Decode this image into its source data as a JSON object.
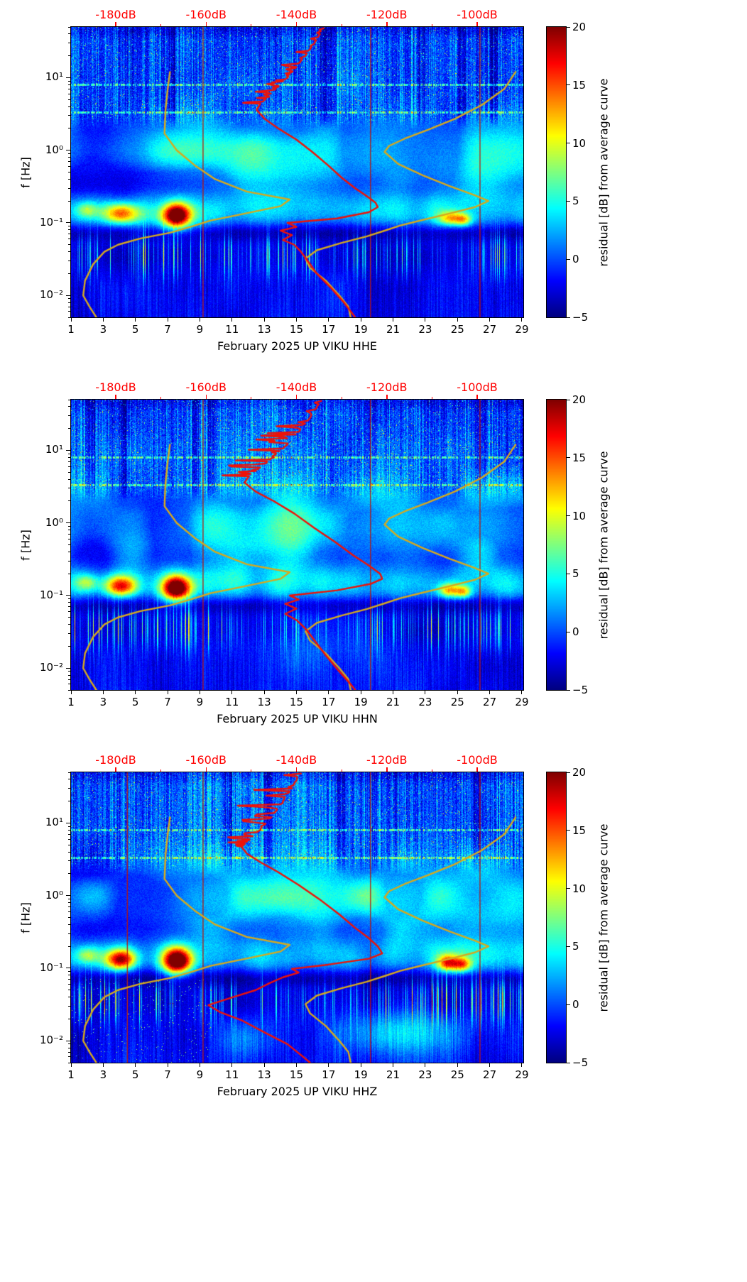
{
  "chart_data": {
    "type": "heatmap",
    "shared": {
      "ylabel": "f [Hz]",
      "freq_range_hz": [
        0.005,
        50
      ],
      "day_range": [
        1,
        29
      ],
      "day_ticks": [
        1,
        3,
        5,
        7,
        9,
        11,
        13,
        15,
        17,
        19,
        21,
        23,
        25,
        27,
        29
      ],
      "y_tick_labels": [
        "10⁻²",
        "10⁻¹",
        "10⁰",
        "10¹"
      ],
      "y_tick_exponents": [
        -2,
        -1,
        0,
        1
      ],
      "top_axis": {
        "labels": [
          "-180dB",
          "-160dB",
          "-140dB",
          "-120dB",
          "-100dB"
        ],
        "values_db": [
          -180,
          -160,
          -140,
          -120,
          -100
        ],
        "color": "#ff0000"
      },
      "colorbar": {
        "label": "residual [dB] from average curve",
        "tick_labels": [
          "20",
          "15",
          "10",
          "5",
          "0",
          "−5"
        ],
        "tick_values": [
          20,
          15,
          10,
          5,
          0,
          -5
        ],
        "min": -5,
        "max": 20,
        "colormap": "jet"
      },
      "colors": {
        "red_curve": "#ee1208",
        "model_curve": "#d6a91e",
        "event_line": "#bb1407"
      },
      "model_curves": {
        "low_noise_model_db_hz": [
          [
            -168,
            12
          ],
          [
            -168.5,
            7
          ],
          [
            -169,
            3.5
          ],
          [
            -169.2,
            1.7
          ],
          [
            -166.5,
            1.0
          ],
          [
            -162.5,
            0.62
          ],
          [
            -158,
            0.4
          ],
          [
            -151,
            0.27
          ],
          [
            -141.5,
            0.21
          ],
          [
            -143.5,
            0.17
          ],
          [
            -152,
            0.132
          ],
          [
            -159,
            0.108
          ],
          [
            -163,
            0.09
          ],
          [
            -168,
            0.073
          ],
          [
            -174.5,
            0.061
          ],
          [
            -179.5,
            0.05
          ],
          [
            -182.5,
            0.04
          ],
          [
            -185,
            0.027
          ],
          [
            -186.8,
            0.016
          ],
          [
            -187.2,
            0.01
          ],
          [
            -185.8,
            0.007
          ],
          [
            -184.3,
            0.005
          ]
        ],
        "high_noise_model_db_hz": [
          [
            -91.5,
            12
          ],
          [
            -94,
            7
          ],
          [
            -99,
            4.2
          ],
          [
            -105,
            2.7
          ],
          [
            -111,
            1.9
          ],
          [
            -116,
            1.45
          ],
          [
            -119.5,
            1.15
          ],
          [
            -120.5,
            0.95
          ],
          [
            -117.5,
            0.65
          ],
          [
            -112,
            0.45
          ],
          [
            -106,
            0.32
          ],
          [
            -100.5,
            0.24
          ],
          [
            -97.5,
            0.2
          ],
          [
            -100.5,
            0.165
          ],
          [
            -106,
            0.135
          ],
          [
            -112,
            0.11
          ],
          [
            -117,
            0.092
          ],
          [
            -120.5,
            0.078
          ],
          [
            -124.5,
            0.065
          ],
          [
            -130,
            0.053
          ],
          [
            -135.5,
            0.042
          ],
          [
            -138,
            0.032
          ],
          [
            -137,
            0.024
          ],
          [
            -133.5,
            0.016
          ],
          [
            -130.5,
            0.01
          ],
          [
            -128.5,
            0.007
          ],
          [
            -128,
            0.005
          ]
        ]
      }
    },
    "panels": [
      {
        "channel": "HHE",
        "xlabel": "February 2025 UP VIKU  HHE",
        "seed": 1,
        "event_line_days": [
          9.2,
          19.6,
          26.4
        ],
        "red_curve_db_hz": [
          [
            -134,
            48
          ],
          [
            -136,
            30
          ],
          [
            -138,
            20
          ],
          [
            -140,
            14
          ],
          [
            -142,
            10
          ],
          [
            -144,
            7.5
          ],
          [
            -146,
            5.5
          ],
          [
            -148,
            4.4
          ],
          [
            -148.8,
            3.6
          ],
          [
            -147,
            2.7
          ],
          [
            -144,
            2.0
          ],
          [
            -140,
            1.4
          ],
          [
            -136.5,
            0.95
          ],
          [
            -133,
            0.62
          ],
          [
            -130,
            0.42
          ],
          [
            -127,
            0.3
          ],
          [
            -124.5,
            0.235
          ],
          [
            -122.5,
            0.19
          ],
          [
            -122,
            0.165
          ],
          [
            -124,
            0.14
          ],
          [
            -131,
            0.115
          ],
          [
            -142,
            0.1
          ],
          [
            -140,
            0.088
          ],
          [
            -143.5,
            0.078
          ],
          [
            -141,
            0.068
          ],
          [
            -143,
            0.058
          ],
          [
            -140.5,
            0.05
          ],
          [
            -139,
            0.04
          ],
          [
            -137.5,
            0.03
          ],
          [
            -135.5,
            0.02
          ],
          [
            -132.5,
            0.013
          ],
          [
            -129.5,
            0.008
          ],
          [
            -127,
            0.005
          ]
        ],
        "jag": {
          "above_hz": 4,
          "amp_db": 6,
          "center_logf": 0.9,
          "width_logf": 0.38
        },
        "blobs": [
          {
            "d": 4.1,
            "l": -0.87,
            "sd": 0.75,
            "sl": 0.1,
            "a": 13
          },
          {
            "d": 7.55,
            "l": -0.9,
            "sd": 0.6,
            "sl": 0.12,
            "a": 21
          },
          {
            "d": 2.0,
            "l": -0.82,
            "sd": 0.5,
            "sl": 0.08,
            "a": 6
          },
          {
            "d": 24.6,
            "l": -0.94,
            "sd": 0.55,
            "sl": 0.07,
            "a": 10
          },
          {
            "d": 25.4,
            "l": -0.96,
            "sd": 0.35,
            "sl": 0.06,
            "a": 8
          }
        ],
        "wedges": [
          {
            "d": 9.5,
            "a": 3.2
          },
          {
            "d": 14.5,
            "a": 3.6
          },
          {
            "d": 21,
            "a": 3.4
          },
          {
            "d": 26.5,
            "a": 2.5
          }
        ],
        "low_features": [],
        "bottom_speckle": false,
        "hf_boost": null
      },
      {
        "channel": "HHN",
        "xlabel": "February 2025 UP VIKU  HHN",
        "seed": 2,
        "event_line_days": [
          9.2,
          19.6,
          26.4
        ],
        "red_curve_db_hz": [
          [
            -134.5,
            48
          ],
          [
            -137,
            28
          ],
          [
            -139.5,
            18
          ],
          [
            -142,
            12
          ],
          [
            -145,
            8
          ],
          [
            -148,
            5.8
          ],
          [
            -150.5,
            4.4
          ],
          [
            -151.5,
            3.6
          ],
          [
            -149,
            2.7
          ],
          [
            -145,
            2.0
          ],
          [
            -140.5,
            1.35
          ],
          [
            -136,
            0.85
          ],
          [
            -131.5,
            0.55
          ],
          [
            -127.5,
            0.36
          ],
          [
            -124,
            0.26
          ],
          [
            -121.5,
            0.2
          ],
          [
            -121,
            0.17
          ],
          [
            -123.5,
            0.145
          ],
          [
            -131,
            0.118
          ],
          [
            -141.5,
            0.1
          ],
          [
            -139.5,
            0.088
          ],
          [
            -142.5,
            0.077
          ],
          [
            -140,
            0.066
          ],
          [
            -142.5,
            0.056
          ],
          [
            -140,
            0.046
          ],
          [
            -138,
            0.035
          ],
          [
            -136,
            0.024
          ],
          [
            -133.5,
            0.015
          ],
          [
            -130.5,
            0.009
          ],
          [
            -128,
            0.006
          ],
          [
            -127,
            0.005
          ]
        ],
        "jag": {
          "above_hz": 4,
          "amp_db": 9,
          "center_logf": 1.0,
          "width_logf": 0.45
        },
        "blobs": [
          {
            "d": 4.1,
            "l": -0.87,
            "sd": 0.7,
            "sl": 0.1,
            "a": 15
          },
          {
            "d": 7.55,
            "l": -0.9,
            "sd": 0.6,
            "sl": 0.12,
            "a": 22
          },
          {
            "d": 2.0,
            "l": -0.82,
            "sd": 0.5,
            "sl": 0.08,
            "a": 6
          },
          {
            "d": 24.5,
            "l": -0.93,
            "sd": 0.5,
            "sl": 0.07,
            "a": 11
          },
          {
            "d": 25.4,
            "l": -0.95,
            "sd": 0.35,
            "sl": 0.06,
            "a": 9
          }
        ],
        "wedges": [
          {
            "d": 9.5,
            "a": 3.0
          },
          {
            "d": 14.5,
            "a": 3.8
          },
          {
            "d": 21,
            "a": 3.4
          },
          {
            "d": 26.5,
            "a": 2.5
          }
        ],
        "low_features": [
          {
            "d": 16,
            "l": -1.6,
            "sd": 3.0,
            "sl": 0.3,
            "a": 2.5
          }
        ],
        "bottom_speckle": false,
        "hf_boost": {
          "d": 11.5,
          "sd": 3.5,
          "a": 1.5
        }
      },
      {
        "channel": "HHZ",
        "xlabel": "February 2025 UP VIKU  HHZ",
        "seed": 3,
        "event_line_days": [
          4.5,
          9.2,
          19.6,
          26.4
        ],
        "red_curve_db_hz": [
          [
            -139,
            48
          ],
          [
            -141,
            30
          ],
          [
            -143,
            19
          ],
          [
            -145.5,
            12
          ],
          [
            -148,
            8
          ],
          [
            -150.5,
            5.8
          ],
          [
            -152,
            4.6
          ],
          [
            -151,
            3.8
          ],
          [
            -148,
            2.9
          ],
          [
            -144,
            2.1
          ],
          [
            -139.5,
            1.4
          ],
          [
            -135,
            0.9
          ],
          [
            -130.5,
            0.55
          ],
          [
            -127,
            0.36
          ],
          [
            -124,
            0.26
          ],
          [
            -122,
            0.2
          ],
          [
            -121,
            0.16
          ],
          [
            -124,
            0.135
          ],
          [
            -133,
            0.112
          ],
          [
            -141,
            0.098
          ],
          [
            -139.5,
            0.087
          ],
          [
            -143,
            0.075
          ],
          [
            -146,
            0.062
          ],
          [
            -149,
            0.05
          ],
          [
            -154,
            0.04
          ],
          [
            -159.5,
            0.031
          ],
          [
            -157,
            0.025
          ],
          [
            -152,
            0.019
          ],
          [
            -147,
            0.013
          ],
          [
            -142,
            0.009
          ],
          [
            -138.5,
            0.006
          ],
          [
            -137,
            0.005
          ]
        ],
        "jag": {
          "above_hz": 4,
          "amp_db": 10,
          "center_logf": 1.25,
          "width_logf": 0.4
        },
        "blobs": [
          {
            "d": 4.1,
            "l": -0.88,
            "sd": 0.65,
            "sl": 0.1,
            "a": 17
          },
          {
            "d": 7.6,
            "l": -0.9,
            "sd": 0.65,
            "sl": 0.13,
            "a": 24
          },
          {
            "d": 2.0,
            "l": -0.82,
            "sd": 0.5,
            "sl": 0.08,
            "a": 6
          },
          {
            "d": 24.4,
            "l": -0.93,
            "sd": 0.45,
            "sl": 0.08,
            "a": 13
          },
          {
            "d": 25.3,
            "l": -0.95,
            "sd": 0.4,
            "sl": 0.07,
            "a": 11
          }
        ],
        "wedges": [
          {
            "d": 9.5,
            "a": 3.2
          },
          {
            "d": 14.5,
            "a": 3.6
          },
          {
            "d": 21,
            "a": 4.0
          },
          {
            "d": 26.5,
            "a": 2.5
          }
        ],
        "low_features": [
          {
            "d": 21.5,
            "l": -1.9,
            "sd": 2.8,
            "sl": 0.22,
            "a": 6
          },
          {
            "d": 12,
            "l": -1.95,
            "sd": 1.5,
            "sl": 0.2,
            "a": 3
          }
        ],
        "bottom_speckle": true,
        "hf_boost": {
          "d": 12,
          "sd": 4.0,
          "a": 1.2
        }
      }
    ]
  }
}
